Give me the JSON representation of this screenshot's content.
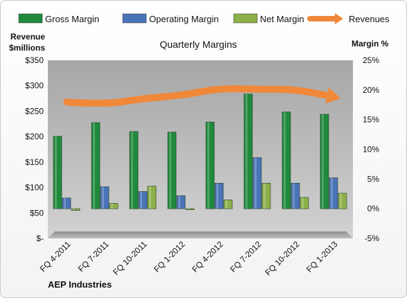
{
  "chart_data": {
    "type": "bar",
    "title": "Quarterly Margins",
    "company": "AEP Industries",
    "y_left_label": [
      "Revenue",
      "$millions"
    ],
    "y_right_label": "Margin %",
    "categories": [
      "FQ 4-2011",
      "FQ 7-2011",
      "FQ 10-2011",
      "FQ 1-2012",
      "FQ 4-2012",
      "FQ 7-2012",
      "FQ 10-2012",
      "FQ 1-2013"
    ],
    "series": [
      {
        "name": "Gross Margin",
        "axis": "right",
        "color": "#1f8a3c",
        "values": [
          12.2,
          14.5,
          13.0,
          12.9,
          14.6,
          19.3,
          16.3,
          15.9
        ]
      },
      {
        "name": "Operating Margin",
        "axis": "right",
        "color": "#4a74b8",
        "values": [
          1.8,
          3.7,
          2.9,
          2.2,
          4.3,
          8.6,
          4.3,
          5.2
        ]
      },
      {
        "name": "Net Margin",
        "axis": "right",
        "color": "#8db04a",
        "values": [
          -0.3,
          0.9,
          3.8,
          -0.1,
          1.5,
          4.3,
          1.9,
          2.6
        ]
      }
    ],
    "line_series": {
      "name": "Revenues",
      "axis": "left",
      "color": "#f0883a",
      "values": [
        268,
        263,
        275,
        281,
        295,
        293,
        293,
        278
      ]
    },
    "y_left_ticks": [
      "$-",
      "$50",
      "$100",
      "$150",
      "$200",
      "$250",
      "$300",
      "$350"
    ],
    "y_left_range": [
      0,
      350
    ],
    "y_right_ticks": [
      "-5%",
      "0%",
      "5%",
      "10%",
      "15%",
      "20%",
      "25%"
    ],
    "y_right_range": [
      -5,
      25
    ],
    "grid": false,
    "legend_position": "top"
  }
}
